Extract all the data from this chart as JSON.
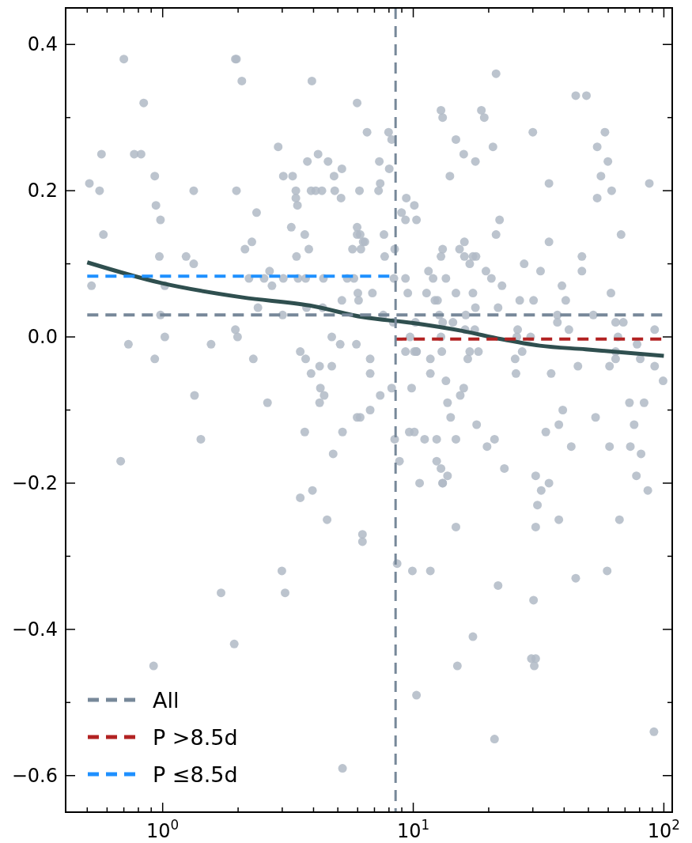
{
  "chart_data": {
    "type": "scatter",
    "log": "x",
    "xlim": [
      0.41,
      108
    ],
    "ylim": [
      -0.65,
      0.45
    ],
    "xticks": [
      {
        "value": 0.5,
        "label": null
      },
      {
        "value": 0.6,
        "label": null
      },
      {
        "value": 0.7,
        "label": null
      },
      {
        "value": 0.8,
        "label": null
      },
      {
        "value": 0.9,
        "label": null
      },
      {
        "value": 1,
        "label": "10$^{0}$"
      },
      {
        "value": 2,
        "label": null
      },
      {
        "value": 3,
        "label": null
      },
      {
        "value": 4,
        "label": null
      },
      {
        "value": 5,
        "label": null
      },
      {
        "value": 6,
        "label": null
      },
      {
        "value": 7,
        "label": null
      },
      {
        "value": 8,
        "label": null
      },
      {
        "value": 9,
        "label": null
      },
      {
        "value": 10,
        "label": "10$^{1}$"
      },
      {
        "value": 20,
        "label": null
      },
      {
        "value": 30,
        "label": null
      },
      {
        "value": 40,
        "label": null
      },
      {
        "value": 50,
        "label": null
      },
      {
        "value": 60,
        "label": null
      },
      {
        "value": 70,
        "label": null
      },
      {
        "value": 80,
        "label": null
      },
      {
        "value": 90,
        "label": null
      },
      {
        "value": 100,
        "label": "10$^{2}$"
      }
    ],
    "yticks": [
      {
        "value": -0.6,
        "label": "−0.6"
      },
      {
        "value": -0.5,
        "label": null
      },
      {
        "value": -0.4,
        "label": "−0.4"
      },
      {
        "value": -0.3,
        "label": null
      },
      {
        "value": -0.2,
        "label": "−0.2"
      },
      {
        "value": -0.1,
        "label": null
      },
      {
        "value": 0,
        "label": "0.0"
      },
      {
        "value": 0.1,
        "label": null
      },
      {
        "value": 0.2,
        "label": "0.2"
      },
      {
        "value": 0.3,
        "label": null
      },
      {
        "value": 0.4,
        "label": "0.4"
      }
    ],
    "grid": false,
    "legend": "bottom left",
    "ref_lines": [
      {
        "axis": "x",
        "value": 8.5,
        "color": "#778899",
        "line_style": "dashed"
      }
    ],
    "series": [
      {
        "color": "#b0bac6",
        "marker": "circle",
        "x": [
          0.51,
          0.52,
          0.56,
          0.57,
          0.58,
          0.7,
          0.73,
          0.77,
          0.82,
          0.84,
          0.93,
          0.94,
          0.98,
          0.97,
          1.02,
          1.02,
          1.24,
          1.33,
          1.33,
          1.56,
          0.98,
          0.93,
          1.95,
          1.97,
          1.97,
          1.95,
          1.99,
          2.07,
          1.34,
          1.42,
          0.68,
          1.71,
          1.93,
          0.92,
          3.94,
          5.97,
          6.54,
          7.97,
          8.2,
          2.89,
          4.17,
          3.78,
          4.57,
          5.19,
          7.32,
          8.02,
          3.3,
          3.03,
          4.83,
          4.86,
          7.38,
          7.27,
          6.1,
          3.4,
          3.4,
          3.91,
          4.08,
          4.32,
          3.45,
          5.15,
          9.38,
          10.1,
          8.98,
          9.31,
          2.37,
          3.26,
          5.97,
          5.97,
          6.14,
          6.41,
          6.31,
          6.18,
          5.72,
          3.69,
          3.83,
          3.42,
          7.64,
          7.69,
          8.43,
          2.13,
          2.27,
          2.21,
          2.67,
          2.54,
          2.73,
          3.03,
          3.47,
          3.72,
          4.38,
          5.45,
          5.8,
          8.37,
          9.31,
          9.51,
          6.01,
          6.87,
          5.19,
          6.05,
          2.4,
          3.01,
          3.75,
          4.35,
          7.59,
          8.32,
          10.2,
          4.73,
          5.11,
          5.93,
          3.54,
          6.73,
          3.72,
          4.73,
          2.3,
          4.23,
          3.91,
          6.73,
          9.71,
          9.31,
          10.1,
          4.26,
          4.41,
          4.23,
          2.62,
          7.38,
          8.2,
          9.85,
          5.97,
          6.14,
          6.73,
          3.69,
          5.22,
          4.79,
          8.43,
          8.81,
          9.64,
          10.1,
          3.54,
          3.96,
          4.53,
          6.27,
          6.27,
          8.62,
          9.92,
          2.99,
          3.08,
          10.3,
          5.22,
          21.4,
          44.5,
          49.1,
          12.9,
          13.1,
          18.7,
          19.2,
          14.8,
          30.0,
          58.2,
          15.9,
          20.8,
          54.2,
          17.7,
          59.8,
          14.0,
          56.1,
          34.8,
          61.9,
          87.5,
          54.2,
          10.3,
          22.1,
          21.4,
          67.5,
          34.8,
          16.0,
          13.1,
          15.3,
          12.9,
          16.0,
          16.8,
          17.3,
          17.8,
          47.1,
          47.1,
          27.7,
          32.2,
          11.5,
          12.0,
          13.5,
          19.5,
          20.5,
          22.6,
          11.3,
          14.8,
          12.2,
          12.5,
          17.3,
          17.7,
          39.2,
          40.6,
          26.6,
          30.2,
          61.5,
          21.8,
          12.7,
          16.2,
          37.6,
          52.3,
          37.6,
          13.1,
          14.4,
          17.6,
          16.1,
          64.2,
          68.9,
          41.8,
          91.9,
          26.1,
          25.9,
          29.4,
          12.9,
          65.6,
          78.2,
          10.3,
          10.3,
          13.0,
          16.8,
          18.2,
          27.2,
          16.5,
          11.7,
          25.5,
          64.2,
          64.2,
          80.5,
          91.9,
          45.4,
          60.7,
          25.7,
          35.5,
          11.7,
          13.5,
          99.3,
          15.9,
          15.4,
          13.7,
          72.9,
          83.4,
          39.5,
          14.1,
          11.1,
          12.4,
          14.8,
          17.9,
          19.7,
          21.1,
          53.4,
          38.1,
          33.8,
          42.7,
          60.7,
          76.1,
          73.5,
          81.1,
          77.7,
          86.3,
          12.4,
          12.9,
          13.1,
          13.7,
          13.1,
          10.6,
          23.1,
          30.8,
          34.8,
          32.4,
          31.3,
          38.1,
          66.5,
          30.8,
          14.8,
          11.7,
          21.8,
          30.2,
          44.5,
          59.4,
          17.3,
          29.6,
          30.8,
          30.4,
          15.0,
          21.1,
          91.3
        ],
        "values": [
          0.21,
          0.07,
          0.2,
          0.25,
          0.14,
          0.38,
          -0.01,
          0.25,
          0.25,
          0.32,
          0.22,
          0.18,
          0.16,
          0.11,
          0.0,
          0.07,
          0.11,
          0.1,
          0.2,
          -0.01,
          0.03,
          -0.03,
          0.38,
          0.38,
          0.2,
          0.01,
          0.0,
          0.35,
          -0.08,
          -0.14,
          -0.17,
          -0.35,
          -0.42,
          -0.45,
          0.35,
          0.32,
          0.28,
          0.28,
          0.27,
          0.26,
          0.25,
          0.24,
          0.24,
          0.23,
          0.24,
          0.23,
          0.22,
          0.22,
          0.22,
          0.2,
          0.21,
          0.2,
          0.2,
          0.2,
          0.19,
          0.2,
          0.2,
          0.2,
          0.18,
          0.19,
          0.19,
          0.18,
          0.17,
          0.16,
          0.17,
          0.15,
          0.15,
          0.14,
          0.14,
          0.13,
          0.13,
          0.12,
          0.12,
          0.14,
          0.12,
          0.11,
          0.14,
          0.11,
          0.12,
          0.12,
          0.13,
          0.08,
          0.09,
          0.08,
          0.07,
          0.08,
          0.08,
          0.08,
          0.08,
          0.08,
          0.08,
          0.08,
          0.08,
          0.06,
          0.06,
          0.06,
          0.05,
          0.05,
          0.04,
          0.03,
          0.04,
          0.04,
          0.03,
          0.02,
          0.02,
          0.0,
          -0.01,
          -0.01,
          -0.02,
          -0.03,
          -0.03,
          -0.04,
          -0.03,
          -0.04,
          -0.05,
          -0.05,
          0.0,
          -0.02,
          -0.02,
          -0.07,
          -0.08,
          -0.09,
          -0.09,
          -0.08,
          -0.07,
          -0.07,
          -0.11,
          -0.11,
          -0.1,
          -0.13,
          -0.13,
          -0.16,
          -0.14,
          -0.17,
          -0.13,
          -0.13,
          -0.22,
          -0.21,
          -0.25,
          -0.27,
          -0.28,
          -0.31,
          -0.32,
          -0.32,
          -0.35,
          -0.49,
          -0.59,
          0.36,
          0.33,
          0.33,
          0.31,
          0.3,
          0.31,
          0.3,
          0.27,
          0.28,
          0.28,
          0.25,
          0.26,
          0.26,
          0.24,
          0.24,
          0.22,
          0.22,
          0.21,
          0.2,
          0.21,
          0.19,
          0.16,
          0.16,
          0.14,
          0.14,
          0.13,
          0.13,
          0.12,
          0.12,
          0.11,
          0.11,
          0.1,
          0.11,
          0.11,
          0.11,
          0.09,
          0.1,
          0.09,
          0.09,
          0.08,
          0.08,
          0.09,
          0.08,
          0.07,
          0.06,
          0.06,
          0.05,
          0.05,
          0.06,
          0.04,
          0.07,
          0.05,
          0.05,
          0.05,
          0.06,
          0.04,
          0.03,
          0.03,
          0.03,
          0.03,
          0.02,
          0.02,
          0.02,
          0.01,
          0.01,
          0.02,
          0.02,
          0.01,
          0.01,
          0.01,
          0.0,
          0.0,
          0.0,
          0.0,
          -0.01,
          -0.02,
          -0.02,
          -0.02,
          -0.02,
          -0.02,
          -0.02,
          -0.03,
          -0.03,
          -0.03,
          -0.02,
          -0.03,
          -0.03,
          -0.04,
          -0.04,
          -0.04,
          -0.05,
          -0.05,
          -0.05,
          -0.06,
          -0.06,
          -0.07,
          -0.08,
          -0.09,
          -0.09,
          -0.09,
          -0.1,
          -0.11,
          -0.14,
          -0.14,
          -0.14,
          -0.12,
          -0.15,
          -0.14,
          -0.11,
          -0.12,
          -0.13,
          -0.15,
          -0.15,
          -0.12,
          -0.15,
          -0.16,
          -0.19,
          -0.21,
          -0.17,
          -0.18,
          -0.2,
          -0.19,
          -0.2,
          -0.2,
          -0.18,
          -0.19,
          -0.2,
          -0.21,
          -0.23,
          -0.25,
          -0.25,
          -0.26,
          -0.26,
          -0.32,
          -0.34,
          -0.36,
          -0.33,
          -0.32,
          -0.41,
          -0.44,
          -0.44,
          -0.45,
          -0.45,
          -0.55,
          -0.54
        ]
      },
      {
        "type": "line",
        "color": "#2f4f4f",
        "line_style": "solid",
        "x": [
          0.5,
          0.98,
          2.09,
          3.86,
          6.31,
          10,
          15.8,
          22.4,
          32,
          48.8,
          100
        ],
        "values": [
          0.102,
          0.074,
          0.054,
          0.043,
          0.027,
          0.019,
          0.008,
          -0.003,
          -0.012,
          -0.017,
          -0.026
        ]
      },
      {
        "type": "line",
        "name": "All",
        "color": "#778899",
        "line_style": "dashed",
        "x": [
          0.5,
          100
        ],
        "values": [
          0.03,
          0.03
        ]
      },
      {
        "type": "line",
        "name": "P >8.5d",
        "color": "#b22222",
        "line_style": "dashed",
        "x": [
          8.5,
          100
        ],
        "values": [
          -0.003,
          -0.003
        ]
      },
      {
        "type": "line",
        "name": "P ≤8.5d",
        "color": "#1e90ff",
        "line_style": "dashed",
        "x": [
          0.5,
          8.5
        ],
        "values": [
          0.083,
          0.083
        ]
      }
    ]
  }
}
